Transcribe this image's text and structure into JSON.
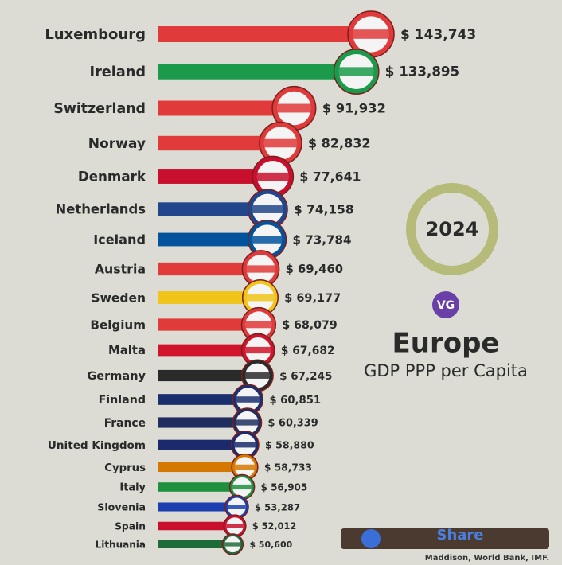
{
  "chart_data": {
    "type": "bar",
    "orientation": "horizontal",
    "title": "Europe",
    "subtitle": "GDP PPP per Capita",
    "year": "2024",
    "logo": "VG",
    "share": "Share",
    "source": "Maddison, World Bank, IMF.",
    "categories": [
      "Luxembourg",
      "Ireland",
      "Switzerland",
      "Norway",
      "Denmark",
      "Netherlands",
      "Iceland",
      "Austria",
      "Sweden",
      "Belgium",
      "Malta",
      "Germany",
      "Finland",
      "France",
      "United Kingdom",
      "Cyprus",
      "Italy",
      "Slovenia",
      "Spain",
      "Lithuania"
    ],
    "values": [
      143743,
      133895,
      91932,
      82832,
      77641,
      74158,
      73784,
      69460,
      69177,
      68079,
      67682,
      67245,
      60851,
      60339,
      58880,
      58733,
      56905,
      53287,
      52012,
      50600
    ],
    "value_labels": [
      "$ 143,743",
      "$ 133,895",
      "$ 91,932",
      "$ 82,832",
      "$ 77,641",
      "$ 74,158",
      "$ 73,784",
      "$ 69,460",
      "$ 69,177",
      "$ 68,079",
      "$ 67,682",
      "$ 67,245",
      "$ 60,851",
      "$ 60,339",
      "$ 58,880",
      "$ 58,733",
      "$ 56,905",
      "$ 53,287",
      "$ 52,012",
      "$ 50,600"
    ],
    "colors": [
      "#e03a3a",
      "#1a9a4a",
      "#e03a3a",
      "#e03a3a",
      "#c8102e",
      "#21468b",
      "#02529c",
      "#e03a3a",
      "#f0c419",
      "#e03a3a",
      "#cf142b",
      "#2a2a2a",
      "#1a2f6e",
      "#1f2e5e",
      "#1a2a6c",
      "#d57800",
      "#1e8f3e",
      "#1b3fae",
      "#c8102e",
      "#1e6b3a"
    ]
  }
}
